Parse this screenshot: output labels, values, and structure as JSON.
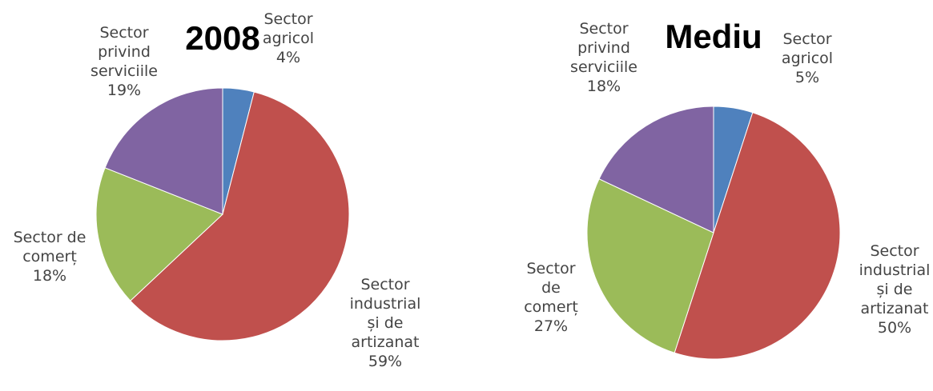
{
  "chart_data": [
    {
      "type": "pie",
      "title": "2008",
      "slices": [
        {
          "name": "Sector agricol",
          "value": 4,
          "color": "#4f81bd",
          "label_lines": [
            "Sector",
            "agricol",
            "4%"
          ]
        },
        {
          "name": "Sector industrial și de artizanat",
          "value": 59,
          "color": "#c0504d",
          "label_lines": [
            "Sector",
            "industrial",
            "și de",
            "artizanat",
            "59%"
          ]
        },
        {
          "name": "Sector de comerț",
          "value": 18,
          "color": "#9bbb59",
          "label_lines": [
            "Sector de",
            "comerț",
            "18%"
          ]
        },
        {
          "name": "Sector privind serviciile",
          "value": 19,
          "color": "#8064a2",
          "label_lines": [
            "Sector",
            "privind",
            "serviciile",
            "19%"
          ]
        }
      ]
    },
    {
      "type": "pie",
      "title": "Mediu",
      "slices": [
        {
          "name": "Sector agricol",
          "value": 5,
          "color": "#4f81bd",
          "label_lines": [
            "Sector",
            "agricol",
            "5%"
          ]
        },
        {
          "name": "Sector industrial și de artizanat",
          "value": 50,
          "color": "#c0504d",
          "label_lines": [
            "Sector",
            "industrial",
            "și de",
            "artizanat",
            "50%"
          ]
        },
        {
          "name": "Sector de comerț",
          "value": 27,
          "color": "#9bbb59",
          "label_lines": [
            "Sector",
            "de",
            "comerț",
            "27%"
          ]
        },
        {
          "name": "Sector privind serviciile",
          "value": 18,
          "color": "#8064a2",
          "label_lines": [
            "Sector",
            "privind",
            "serviciile",
            "18%"
          ]
        }
      ]
    }
  ]
}
